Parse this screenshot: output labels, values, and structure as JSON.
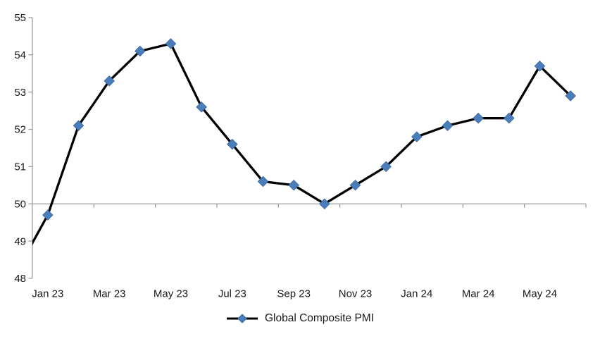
{
  "chart_data": {
    "type": "line",
    "title": "",
    "categories": [
      "Dec 22",
      "Jan 23",
      "Feb 23",
      "Mar 23",
      "Apr 23",
      "May 23",
      "Jun 23",
      "Jul 23",
      "Aug 23",
      "Sep 23",
      "Oct 23",
      "Nov 23",
      "Dec 23",
      "Jan 24",
      "Feb 24",
      "Mar 24",
      "Apr 24",
      "May 24",
      "Jun 24"
    ],
    "series": [
      {
        "name": "Global Composite PMI",
        "values": [
          48.2,
          49.7,
          52.1,
          53.3,
          54.1,
          54.3,
          52.6,
          51.6,
          50.6,
          50.5,
          50.0,
          50.5,
          51.0,
          51.8,
          52.1,
          52.3,
          52.3,
          53.7,
          52.9
        ]
      }
    ],
    "x_axis": {
      "labeled_ticks": [
        "Jan 23",
        "Mar 23",
        "May 23",
        "Jul 23",
        "Sep 23",
        "Nov 23",
        "Jan 24",
        "Mar 24",
        "May 24"
      ],
      "label_interval": 2,
      "first_category_clipped_at_left_edge": true
    },
    "y_axis": {
      "min": 48,
      "max": 55,
      "step": 1,
      "tick_labels": [
        "48",
        "49",
        "50",
        "51",
        "52",
        "53",
        "54",
        "55"
      ]
    },
    "axis_cross_value": 50,
    "grid": false,
    "legend": {
      "position": "bottom"
    },
    "colors": {
      "line": "#000000",
      "marker_fill": "#4a7ebb",
      "marker_edge": "#38669e",
      "axis": "#9d9d9d",
      "text": "#1a1a1a",
      "background": "#ffffff"
    }
  }
}
